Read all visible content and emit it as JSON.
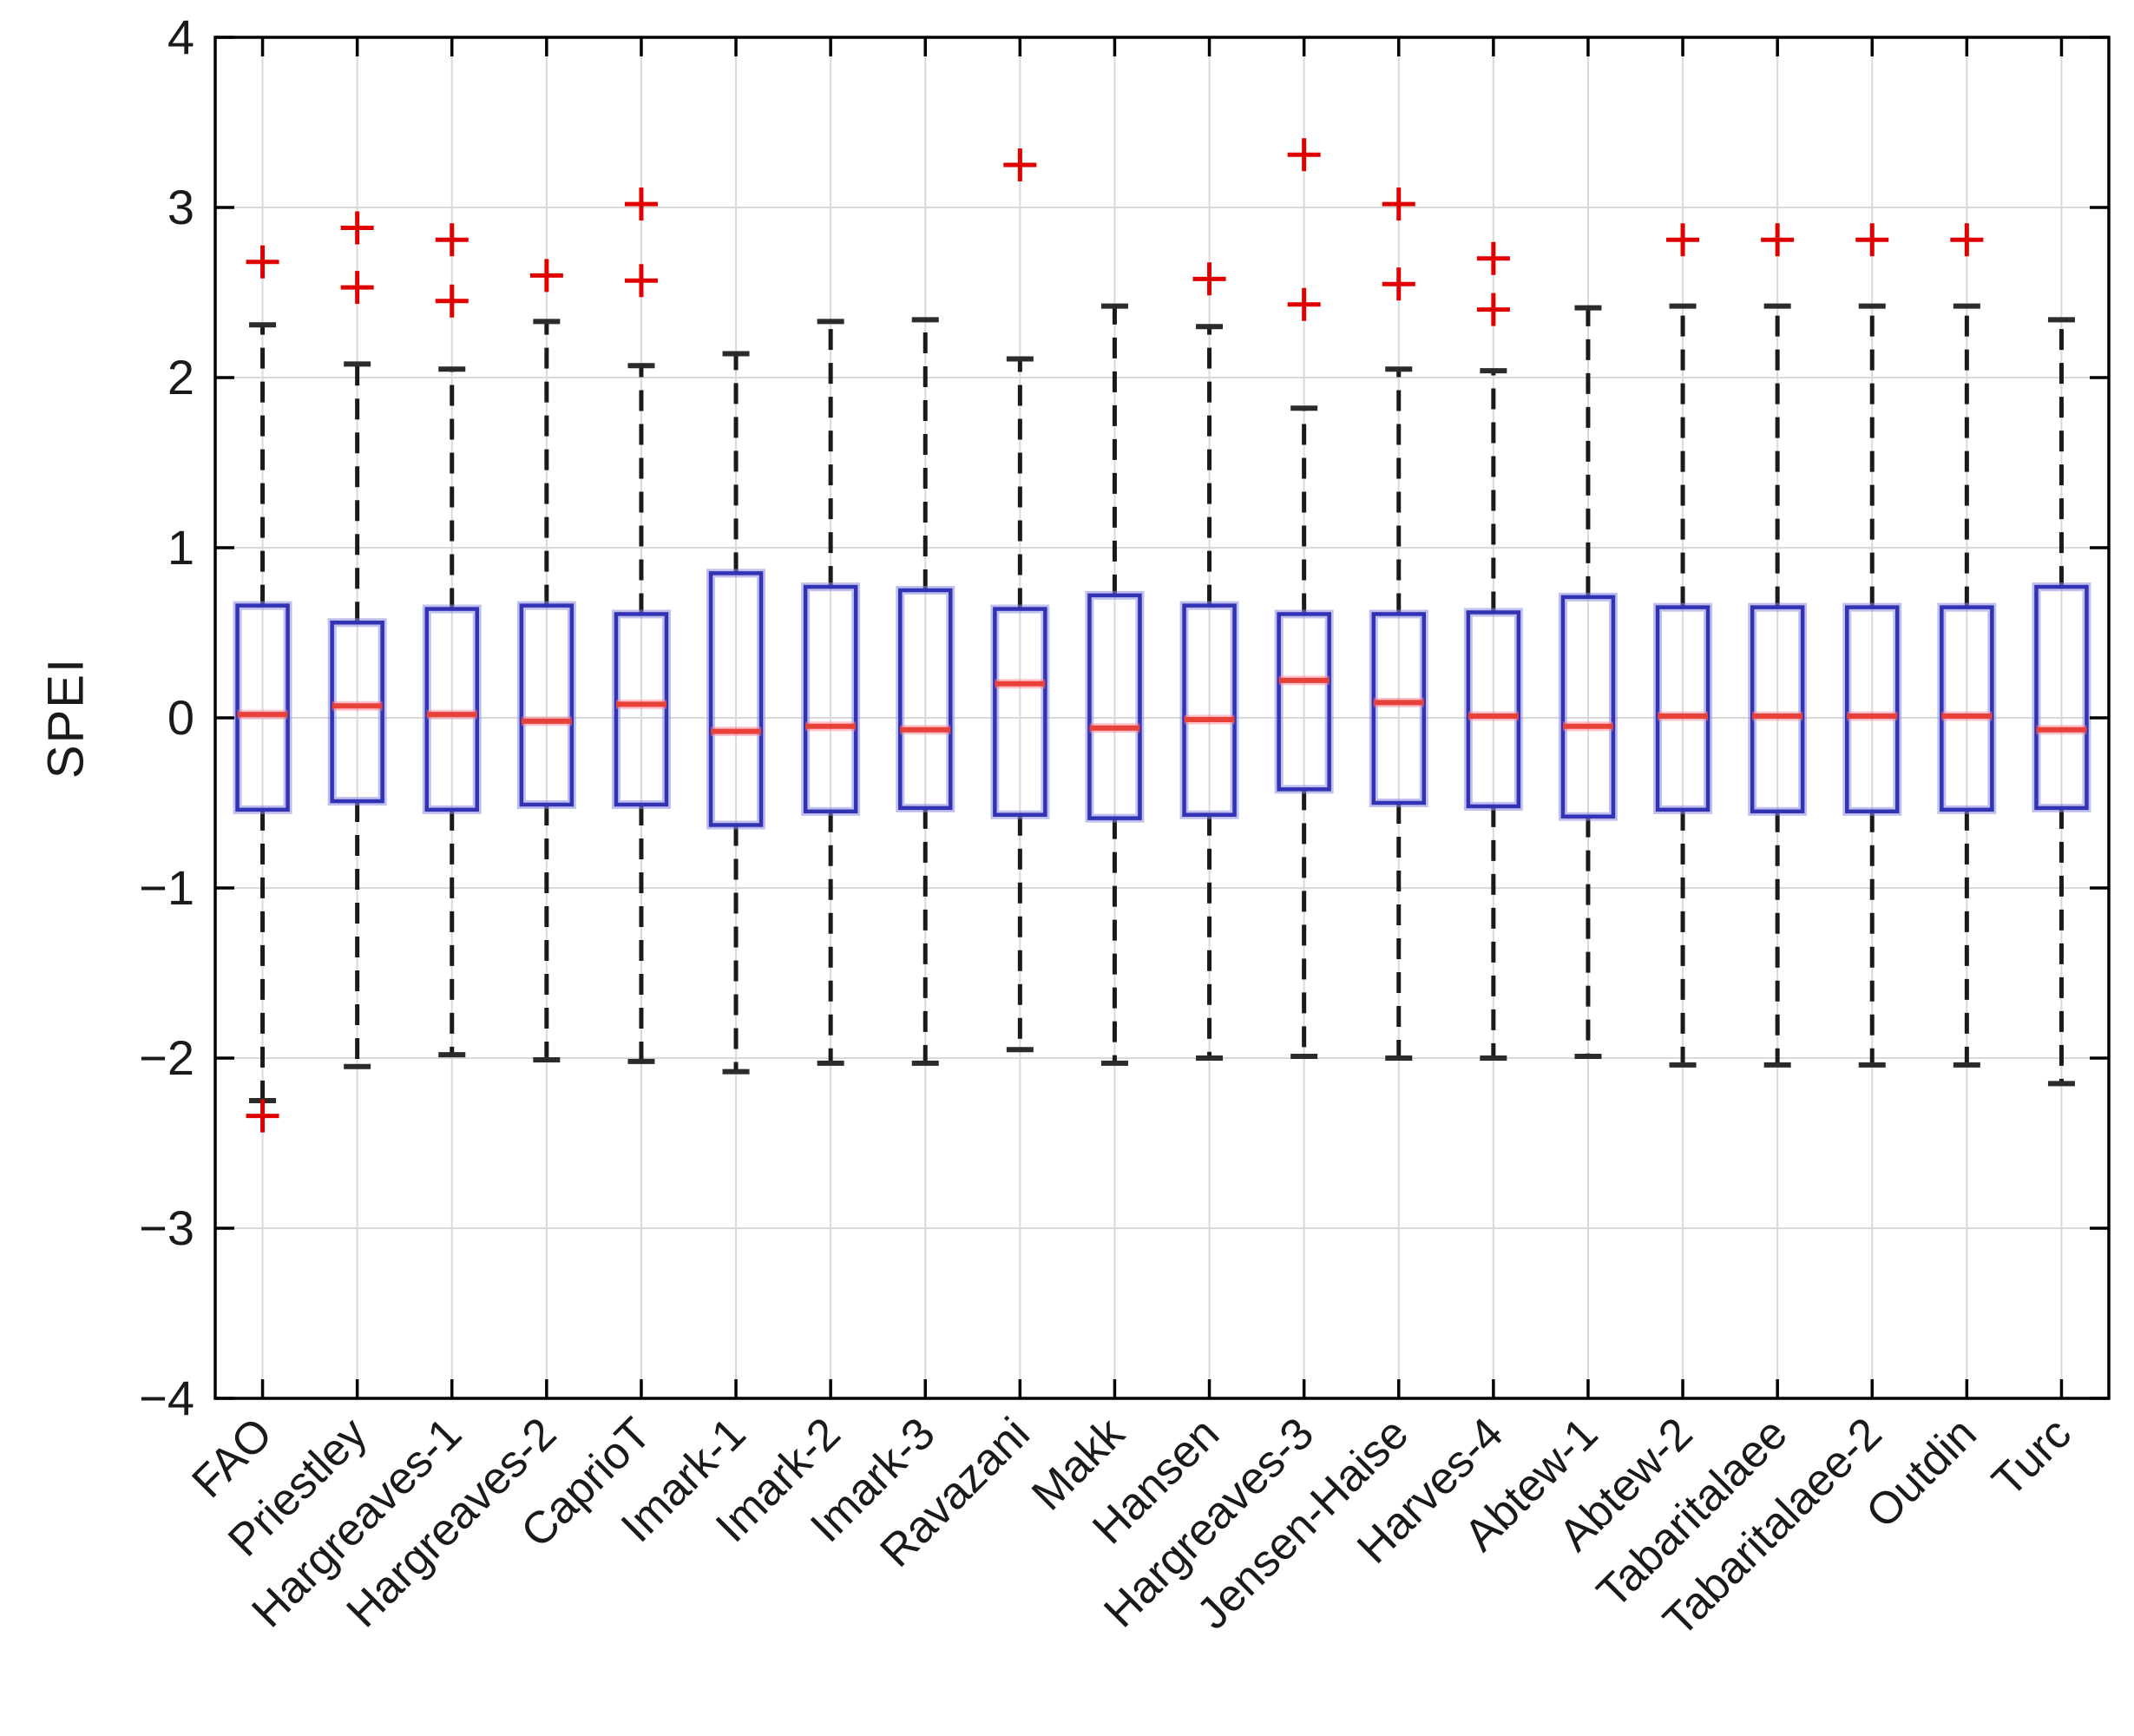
{
  "figure": {
    "title": "",
    "colors": {
      "box_edge": "#3232b4",
      "box_halo": "#8c8ce0",
      "median": "#e8413a",
      "median_halo": "#ff7a8c",
      "outlier": "#e00000",
      "whisker": "#1a1a1a",
      "whisker_cap": "#2b2b2b",
      "grid": "#d9d9d9",
      "axis": "#000000",
      "text": "#1a1a1a",
      "background": "#ffffff"
    }
  },
  "chart_data": {
    "type": "boxplot",
    "title": "",
    "xlabel": "",
    "ylabel": "SPEI",
    "ylim": [
      -4,
      4
    ],
    "yticks": [
      4,
      3,
      2,
      1,
      0,
      -1,
      -2,
      -3,
      -4
    ],
    "ytick_labels": [
      "4",
      "3",
      "2",
      "1",
      "0",
      "−1",
      "−2",
      "−3",
      "−4"
    ],
    "grid": true,
    "x_label_rotation_deg": 45,
    "categories": [
      "FAO",
      "Priestley",
      "Hargreaves-1",
      "Hargreaves-2",
      "CaprioT",
      "Imark-1",
      "Imark-2",
      "Imark-3",
      "Ravazani",
      "Makk",
      "Hansen",
      "Hargreaves-3",
      "Jensen-Haise",
      "Harves-4",
      "Abtew-1",
      "Abtew-2",
      "Tabaritalaee",
      "Tabaritalaee-2",
      "Outdin",
      "Turc"
    ],
    "boxes": [
      {
        "name": "FAO",
        "whisker_low": -2.25,
        "q1": -0.54,
        "median": 0.02,
        "q3": 0.66,
        "whisker_high": 2.31,
        "outliers": [
          2.68,
          -2.34
        ]
      },
      {
        "name": "Priestley",
        "whisker_low": -2.05,
        "q1": -0.49,
        "median": 0.07,
        "q3": 0.56,
        "whisker_high": 2.08,
        "outliers": [
          2.88,
          2.53
        ]
      },
      {
        "name": "Hargreaves-1",
        "whisker_low": -1.98,
        "q1": -0.54,
        "median": 0.02,
        "q3": 0.64,
        "whisker_high": 2.05,
        "outliers": [
          2.81,
          2.45
        ]
      },
      {
        "name": "Hargreaves-2",
        "whisker_low": -2.01,
        "q1": -0.51,
        "median": -0.02,
        "q3": 0.66,
        "whisker_high": 2.33,
        "outliers": [
          2.6
        ]
      },
      {
        "name": "CaprioT",
        "whisker_low": -2.02,
        "q1": -0.51,
        "median": 0.08,
        "q3": 0.61,
        "whisker_high": 2.07,
        "outliers": [
          3.02,
          2.57
        ]
      },
      {
        "name": "Imark-1",
        "whisker_low": -2.08,
        "q1": -0.63,
        "median": -0.08,
        "q3": 0.85,
        "whisker_high": 2.14,
        "outliers": []
      },
      {
        "name": "Imark-2",
        "whisker_low": -2.03,
        "q1": -0.55,
        "median": -0.05,
        "q3": 0.77,
        "whisker_high": 2.33,
        "outliers": []
      },
      {
        "name": "Imark-3",
        "whisker_low": -2.03,
        "q1": -0.53,
        "median": -0.07,
        "q3": 0.75,
        "whisker_high": 2.34,
        "outliers": []
      },
      {
        "name": "Ravazani",
        "whisker_low": -1.95,
        "q1": -0.57,
        "median": 0.2,
        "q3": 0.64,
        "whisker_high": 2.11,
        "outliers": [
          3.25
        ]
      },
      {
        "name": "Makk",
        "whisker_low": -2.03,
        "q1": -0.59,
        "median": -0.06,
        "q3": 0.72,
        "whisker_high": 2.42,
        "outliers": []
      },
      {
        "name": "Hansen",
        "whisker_low": -2.0,
        "q1": -0.57,
        "median": -0.01,
        "q3": 0.66,
        "whisker_high": 2.3,
        "outliers": [
          2.58
        ]
      },
      {
        "name": "Hargreaves-3",
        "whisker_low": -1.99,
        "q1": -0.42,
        "median": 0.22,
        "q3": 0.61,
        "whisker_high": 1.82,
        "outliers": [
          3.31,
          2.43
        ]
      },
      {
        "name": "Jensen-Haise",
        "whisker_low": -2.0,
        "q1": -0.5,
        "median": 0.09,
        "q3": 0.61,
        "whisker_high": 2.05,
        "outliers": [
          3.02,
          2.55
        ]
      },
      {
        "name": "Harves-4",
        "whisker_low": -2.0,
        "q1": -0.52,
        "median": 0.01,
        "q3": 0.62,
        "whisker_high": 2.04,
        "outliers": [
          2.7,
          2.4
        ]
      },
      {
        "name": "Abtew-1",
        "whisker_low": -1.99,
        "q1": -0.58,
        "median": -0.05,
        "q3": 0.71,
        "whisker_high": 2.41,
        "outliers": []
      },
      {
        "name": "Abtew-2",
        "whisker_low": -2.04,
        "q1": -0.54,
        "median": 0.01,
        "q3": 0.65,
        "whisker_high": 2.42,
        "outliers": [
          2.81
        ]
      },
      {
        "name": "Tabaritalaee",
        "whisker_low": -2.04,
        "q1": -0.55,
        "median": 0.01,
        "q3": 0.65,
        "whisker_high": 2.42,
        "outliers": [
          2.81
        ]
      },
      {
        "name": "Tabaritalaee-2",
        "whisker_low": -2.04,
        "q1": -0.55,
        "median": 0.01,
        "q3": 0.65,
        "whisker_high": 2.42,
        "outliers": [
          2.81
        ]
      },
      {
        "name": "Outdin",
        "whisker_low": -2.04,
        "q1": -0.54,
        "median": 0.01,
        "q3": 0.65,
        "whisker_high": 2.42,
        "outliers": [
          2.81
        ]
      },
      {
        "name": "Turc",
        "whisker_low": -2.15,
        "q1": -0.53,
        "median": -0.07,
        "q3": 0.77,
        "whisker_high": 2.34,
        "outliers": []
      }
    ],
    "legend": null
  }
}
